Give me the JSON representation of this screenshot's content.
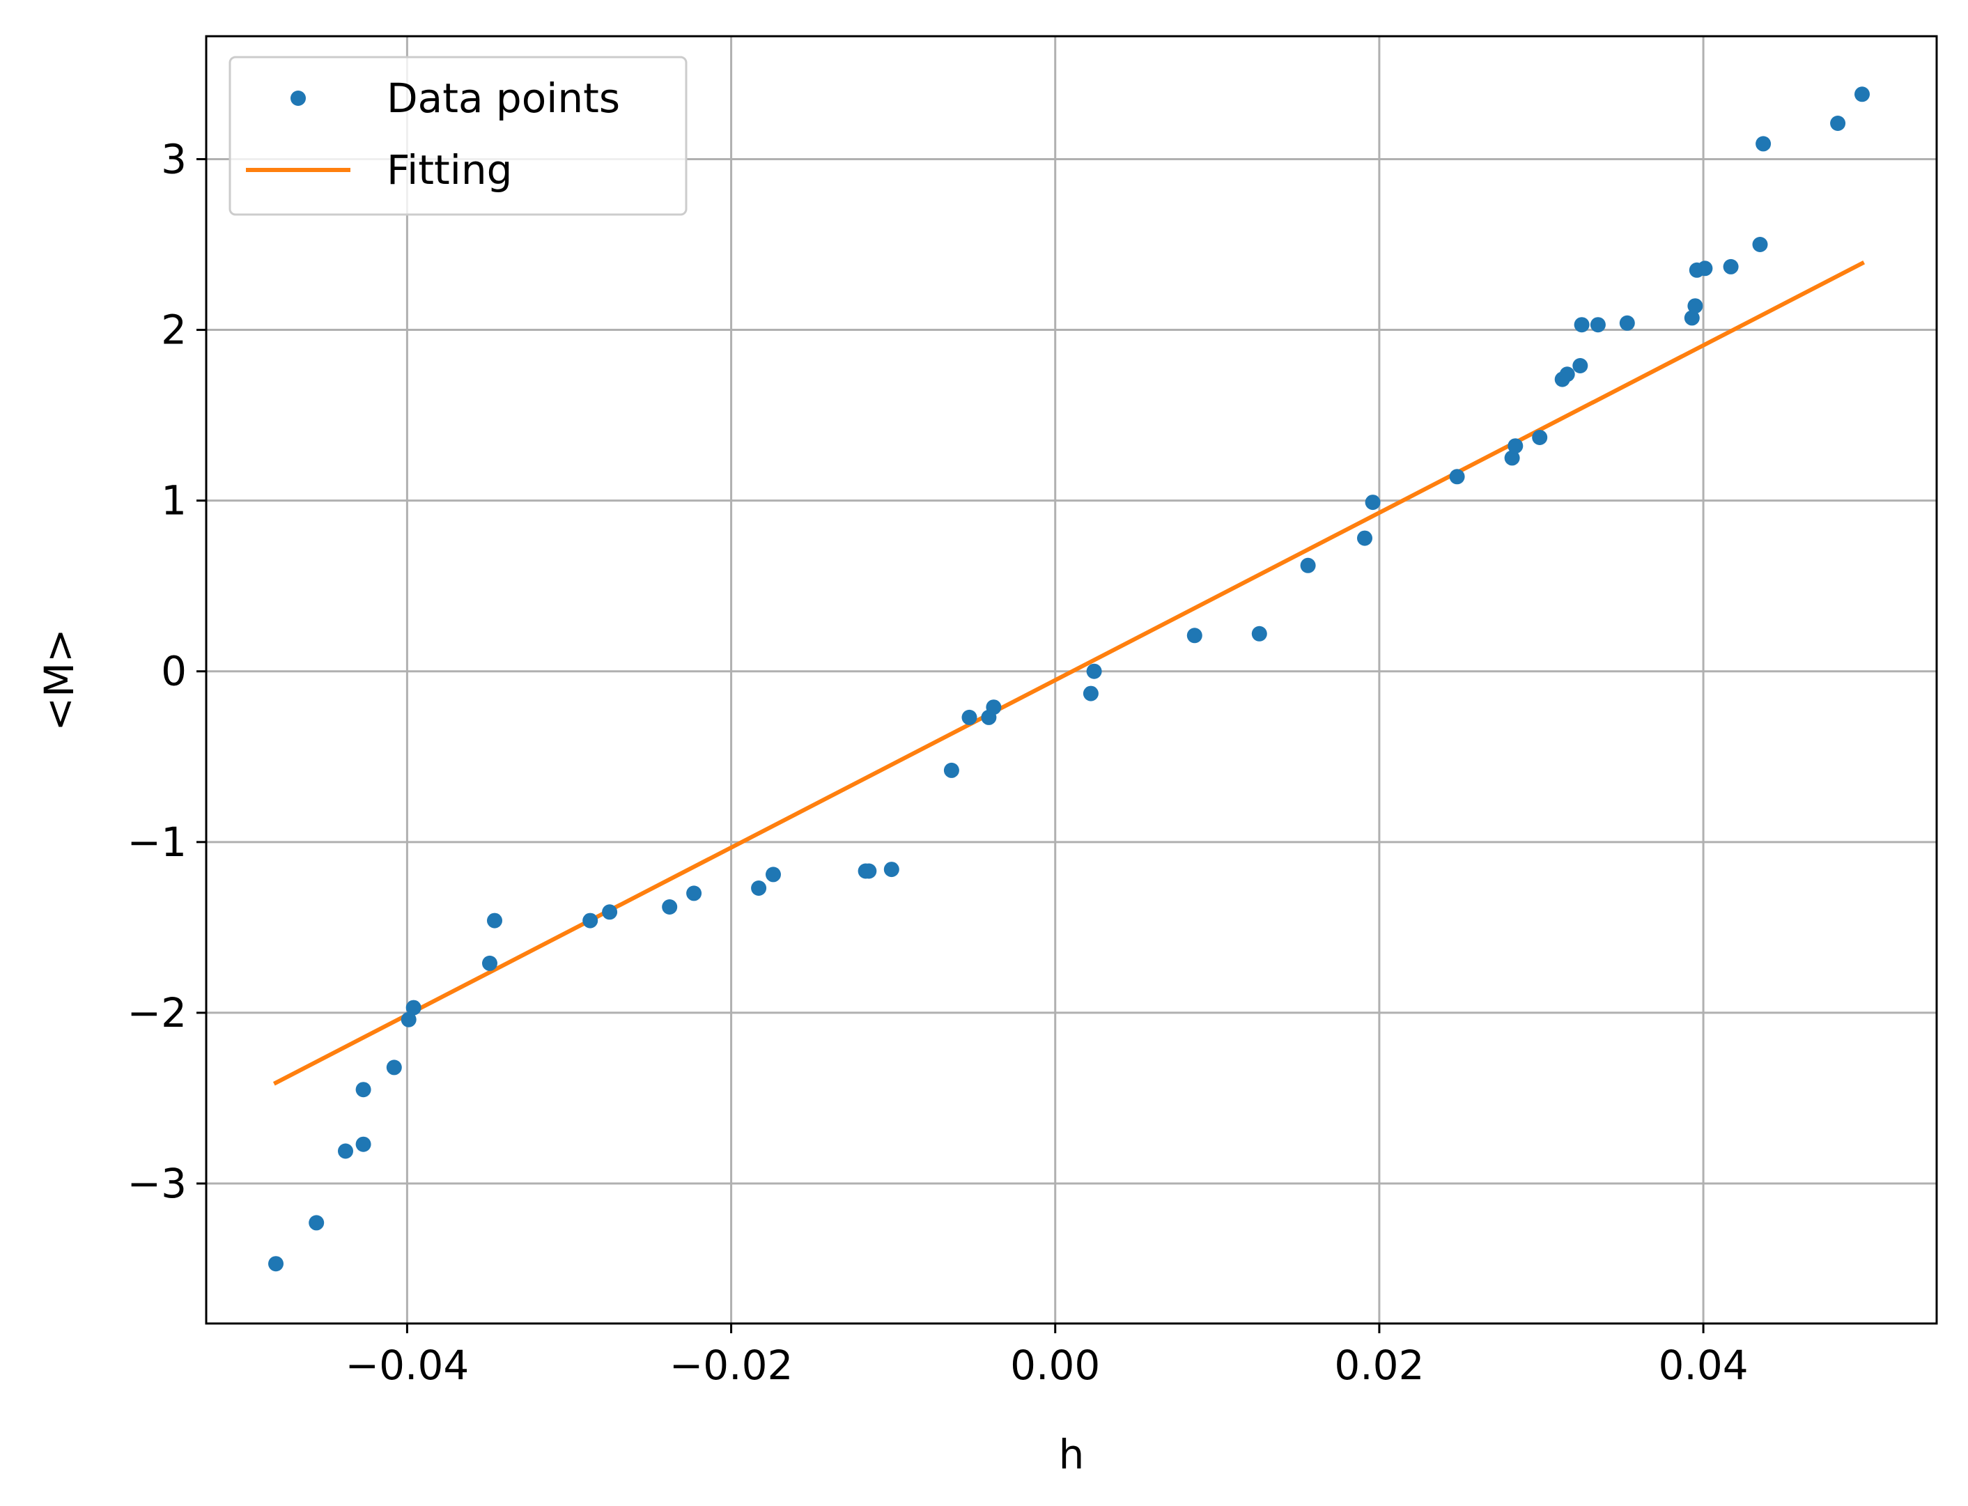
{
  "chart_data": {
    "type": "scatter",
    "xlabel": "h",
    "ylabel": "<M>",
    "xlim": [
      -0.0524,
      0.0544
    ],
    "ylim": [
      -3.82,
      3.72
    ],
    "grid": true,
    "legend_position": "top-left",
    "x_ticks": [
      -0.04,
      -0.02,
      0.0,
      0.02,
      0.04
    ],
    "x_tick_labels": [
      "−0.04",
      "−0.02",
      "0.00",
      "0.02",
      "0.04"
    ],
    "y_ticks": [
      -3,
      -2,
      -1,
      0,
      1,
      2,
      3
    ],
    "y_tick_labels": [
      "−3",
      "−2",
      "−1",
      "0",
      "1",
      "2",
      "3"
    ],
    "series": [
      {
        "name": "Data points",
        "kind": "scatter",
        "color": "#1f77b4",
        "points": [
          [
            -0.0481,
            -3.47
          ],
          [
            -0.0456,
            -3.23
          ],
          [
            -0.0438,
            -2.81
          ],
          [
            -0.0427,
            -2.77
          ],
          [
            -0.0427,
            -2.45
          ],
          [
            -0.0408,
            -2.32
          ],
          [
            -0.0399,
            -2.04
          ],
          [
            -0.0396,
            -1.97
          ],
          [
            -0.0349,
            -1.71
          ],
          [
            -0.0346,
            -1.46
          ],
          [
            -0.0287,
            -1.46
          ],
          [
            -0.0275,
            -1.41
          ],
          [
            -0.0238,
            -1.38
          ],
          [
            -0.0223,
            -1.3
          ],
          [
            -0.0183,
            -1.27
          ],
          [
            -0.0174,
            -1.19
          ],
          [
            -0.0117,
            -1.17
          ],
          [
            -0.0115,
            -1.17
          ],
          [
            -0.0101,
            -1.16
          ],
          [
            -0.0064,
            -0.58
          ],
          [
            -0.0053,
            -0.27
          ],
          [
            -0.0041,
            -0.27
          ],
          [
            -0.0038,
            -0.21
          ],
          [
            0.0022,
            -0.13
          ],
          [
            0.0024,
            0.0
          ],
          [
            0.0086,
            0.21
          ],
          [
            0.0126,
            0.22
          ],
          [
            0.0156,
            0.62
          ],
          [
            0.0191,
            0.78
          ],
          [
            0.0196,
            0.99
          ],
          [
            0.0248,
            1.14
          ],
          [
            0.0282,
            1.25
          ],
          [
            0.0284,
            1.32
          ],
          [
            0.0299,
            1.37
          ],
          [
            0.0313,
            1.71
          ],
          [
            0.0316,
            1.74
          ],
          [
            0.0324,
            1.79
          ],
          [
            0.0325,
            2.03
          ],
          [
            0.0335,
            2.03
          ],
          [
            0.0353,
            2.04
          ],
          [
            0.0393,
            2.07
          ],
          [
            0.0395,
            2.14
          ],
          [
            0.0396,
            2.35
          ],
          [
            0.0401,
            2.36
          ],
          [
            0.0417,
            2.37
          ],
          [
            0.0435,
            2.5
          ],
          [
            0.0437,
            3.09
          ],
          [
            0.0483,
            3.21
          ],
          [
            0.0498,
            3.38
          ]
        ]
      },
      {
        "name": "Fitting",
        "kind": "line",
        "color": "#ff7f0e",
        "points": [
          [
            -0.0481,
            -2.41
          ],
          [
            0.0498,
            2.39
          ]
        ]
      }
    ]
  }
}
